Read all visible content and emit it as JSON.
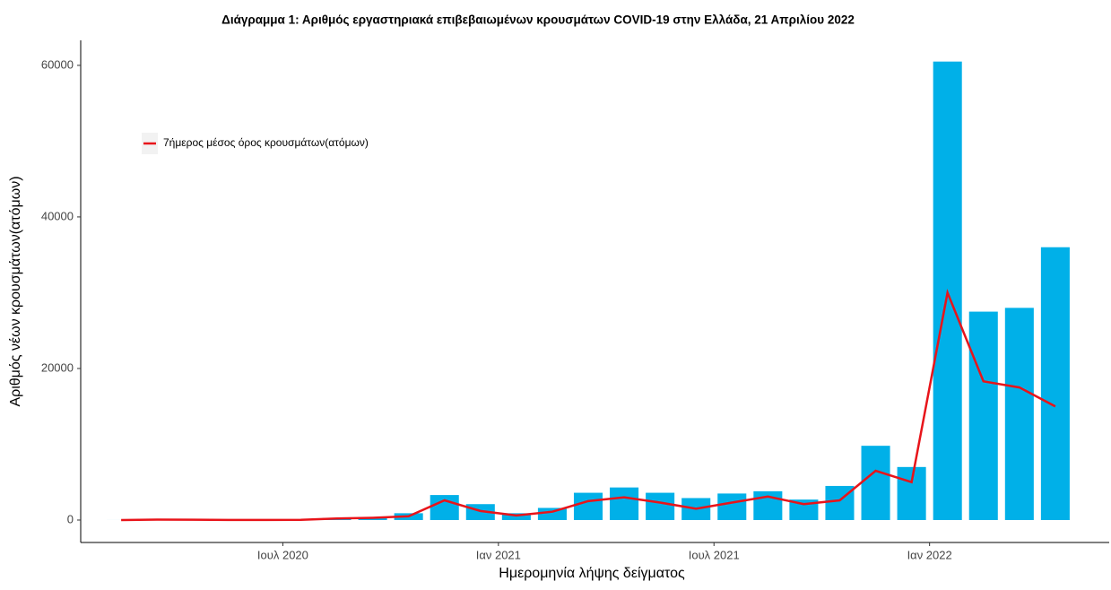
{
  "chart_data": {
    "type": "bar-line",
    "title": "Διάγραμμα 1: Αριθμός εργαστηριακά επιβεβαιωμένων κρουσμάτων COVID-19 στην Ελλάδα, 21 Απριλίου 2022",
    "x_label": "Ημερομηνία λήψης δείγματος",
    "y_label": "Αριθμός νέων κρουσμάτων(ατόμων)",
    "x": [
      "2020-02",
      "2020-03",
      "2020-04",
      "2020-05",
      "2020-06",
      "2020-07",
      "2020-08",
      "2020-09",
      "2020-10",
      "2020-11",
      "2020-12",
      "2021-01",
      "2021-02",
      "2021-03",
      "2021-04",
      "2021-05",
      "2021-06",
      "2021-07",
      "2021-08",
      "2021-09",
      "2021-10",
      "2021-11",
      "2021-12",
      "2022-01",
      "2022-02",
      "2022-03",
      "2022-04"
    ],
    "series": [
      {
        "type": "bar",
        "color": "#00b0e8",
        "values": [
          3,
          100,
          80,
          20,
          30,
          40,
          270,
          400,
          900,
          3300,
          2100,
          900,
          1600,
          3600,
          4300,
          3600,
          2900,
          3500,
          3800,
          2700,
          4500,
          9800,
          7000,
          60500,
          27500,
          28000,
          36000
        ]
      },
      {
        "type": "line",
        "name": "7ήμερος μέσος όρος κρουσμάτων(ατόμων)",
        "color": "#e8141a",
        "values": [
          0,
          50,
          40,
          10,
          15,
          30,
          200,
          300,
          500,
          2600,
          1200,
          600,
          1100,
          2500,
          3000,
          2300,
          1500,
          2300,
          3100,
          2100,
          2600,
          6500,
          5000,
          30000,
          18300,
          17500,
          15000
        ]
      }
    ],
    "xlim": [
      "2020-01",
      "2022-06"
    ],
    "xticks": [
      {
        "value": "2020-07",
        "label": "Ιουλ 2020"
      },
      {
        "value": "2021-01",
        "label": "Ιαν 2021"
      },
      {
        "value": "2021-07",
        "label": "Ιουλ 2021"
      },
      {
        "value": "2022-01",
        "label": "Ιαν 2022"
      }
    ],
    "ylim": [
      -2960,
      63300
    ],
    "yticks": [
      0,
      20000,
      40000,
      60000
    ],
    "grid": false,
    "legend": "top-left"
  }
}
